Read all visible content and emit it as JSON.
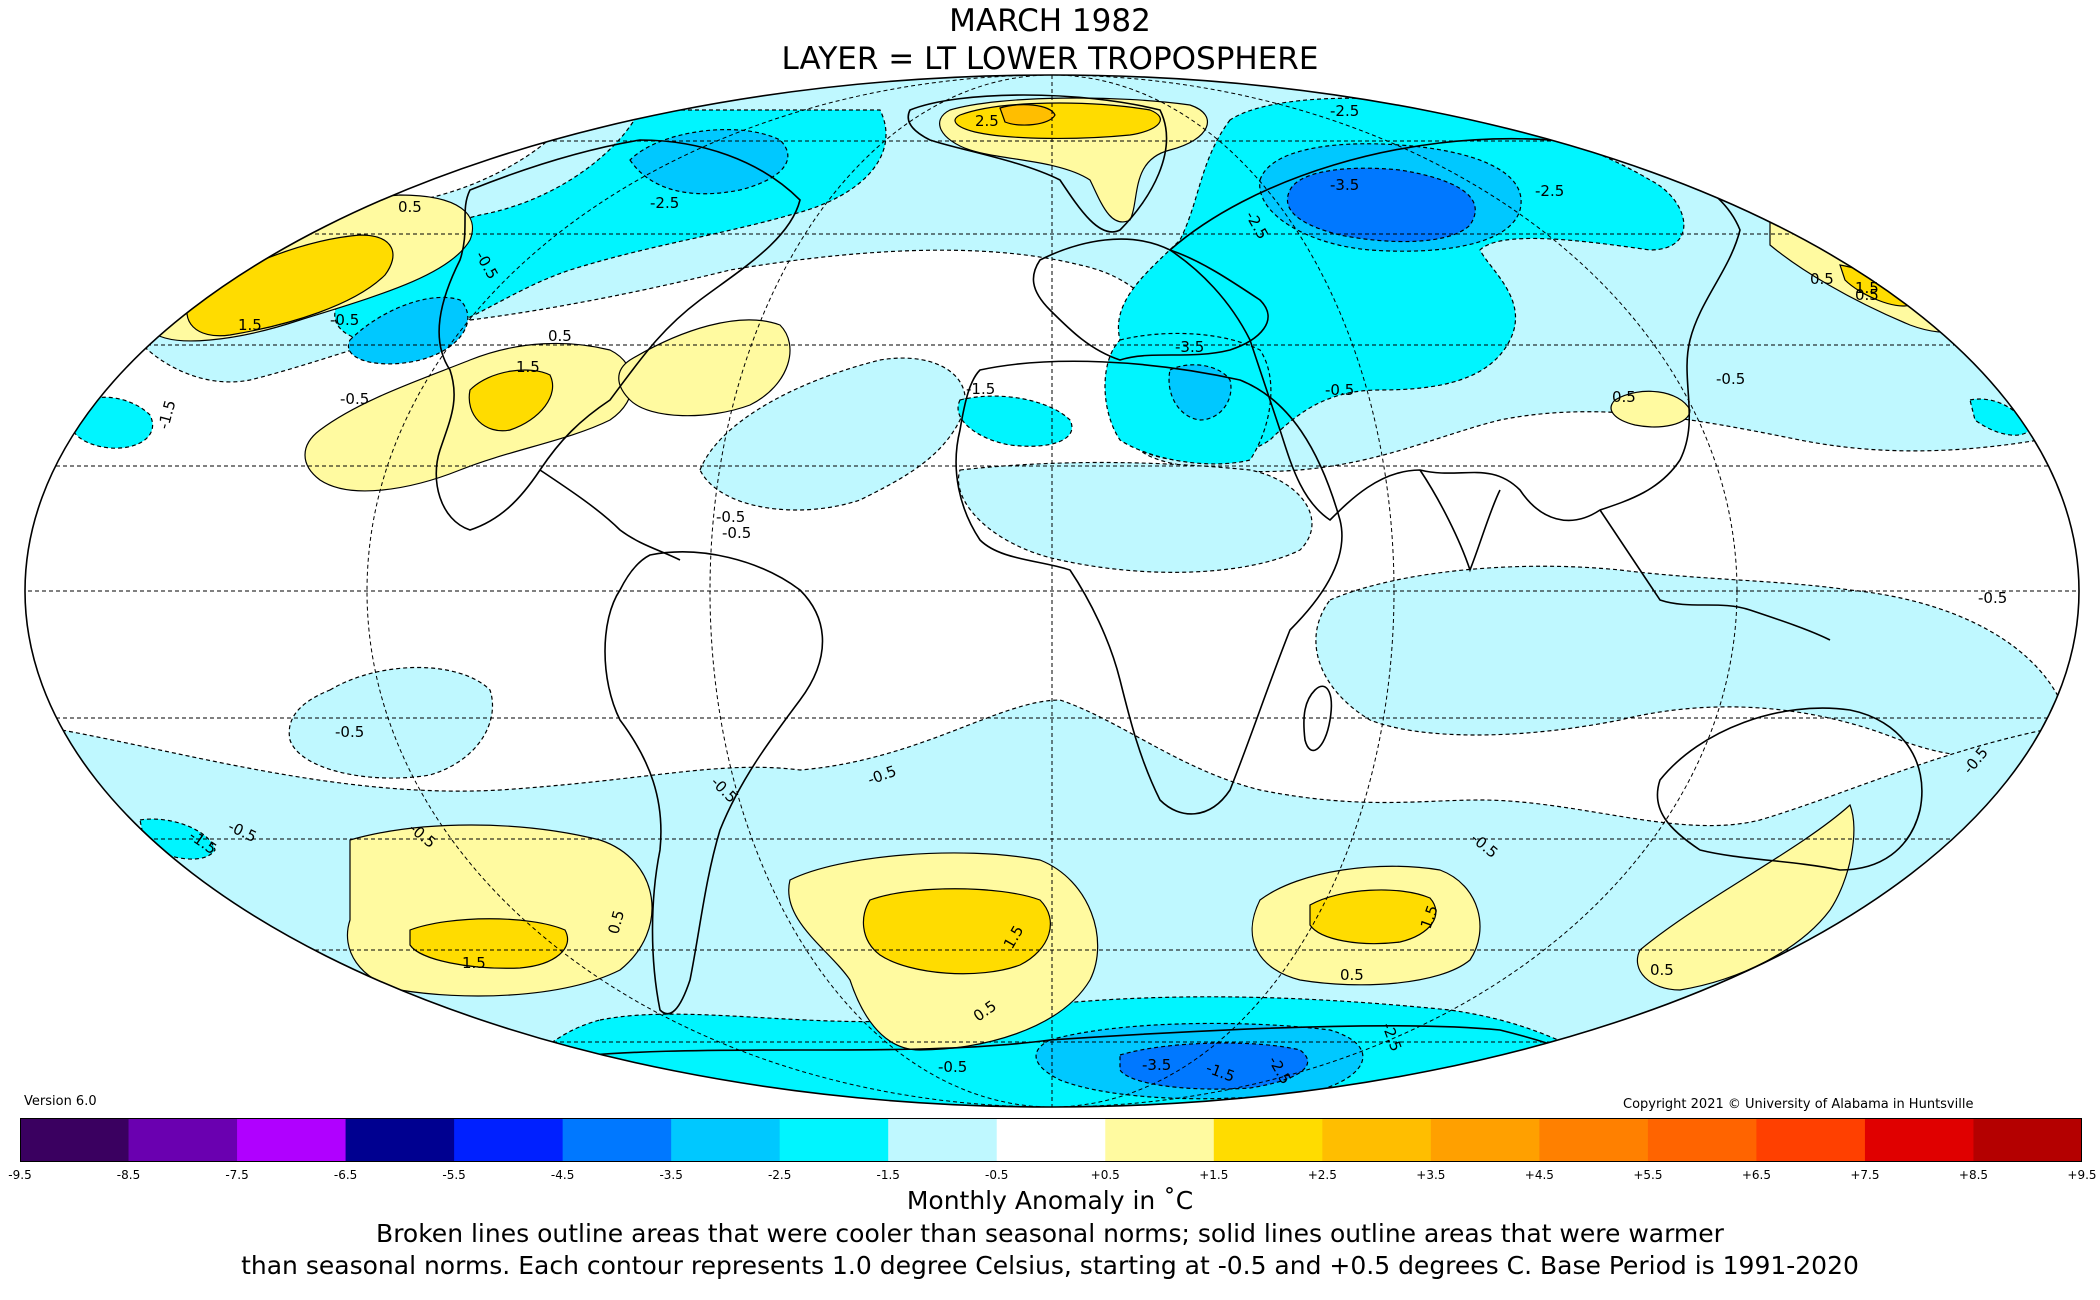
{
  "title": "MARCH 1982",
  "subtitle": "LAYER = LT LOWER TROPOSPHERE",
  "version": "Version 6.0",
  "copyright": "Copyright 2021 © University of Alabama in Huntsville",
  "colorbar": {
    "ticks": [
      "-9.5",
      "-8.5",
      "-7.5",
      "-6.5",
      "-5.5",
      "-4.5",
      "-3.5",
      "-2.5",
      "-1.5",
      "-0.5",
      "+0.5",
      "+1.5",
      "+2.5",
      "+3.5",
      "+4.5",
      "+5.5",
      "+6.5",
      "+7.5",
      "+8.5",
      "+9.5"
    ],
    "colors": [
      "#3a0060",
      "#6a00b0",
      "#b000ff",
      "#000090",
      "#0020ff",
      "#0078ff",
      "#00c8ff",
      "#00f5ff",
      "#bff8ff",
      "#ffffff",
      "#fffaa0",
      "#ffdc00",
      "#ffbe00",
      "#ffa000",
      "#ff8000",
      "#ff6400",
      "#ff4000",
      "#e00000",
      "#b40000"
    ],
    "unit_label": "Monthly Anomaly in ˚C"
  },
  "note_line1": "Broken lines outline areas that were cooler than seasonal norms; solid lines outline areas that were warmer",
  "note_line2": "than seasonal norms. Each contour represents 1.0 degree Celsius, starting at -0.5 and +0.5 degrees C. Base Period is 1991-2020",
  "map": {
    "palette": {
      "ocean_bg": "#ffffff",
      "cool_1": "#bff8ff",
      "cool_2": "#00f5ff",
      "cool_3": "#00c8ff",
      "cool_4": "#0078ff",
      "warm_1": "#fffaa0",
      "warm_2": "#ffdc00",
      "warm_3": "#ffbe00"
    },
    "contour_labels": [
      "0.5",
      "1.5",
      "-0.5",
      "-1.5",
      "-2.5",
      "-3.5",
      "2.5",
      "-2.5",
      "-3.5",
      "-2.5",
      "-2.5",
      "-0.5",
      "0.5",
      "1.5",
      "-1.5",
      "-0.5",
      "-0.5",
      "-0.5",
      "-0.5",
      "0.5",
      "1.5",
      "0.5",
      "0.5",
      "1.5",
      "0.5",
      "-0.5",
      "-0.5",
      "-0.5",
      "-0.5",
      "-1.5",
      "-0.5",
      "1.5",
      "-0.5",
      "0.5",
      "0.5",
      "-3.5",
      "-2.5",
      "-2.5",
      "-1.5",
      "-0.5",
      "-0.5",
      "-0.5",
      "1.5",
      "0.5",
      "-0.5"
    ]
  }
}
